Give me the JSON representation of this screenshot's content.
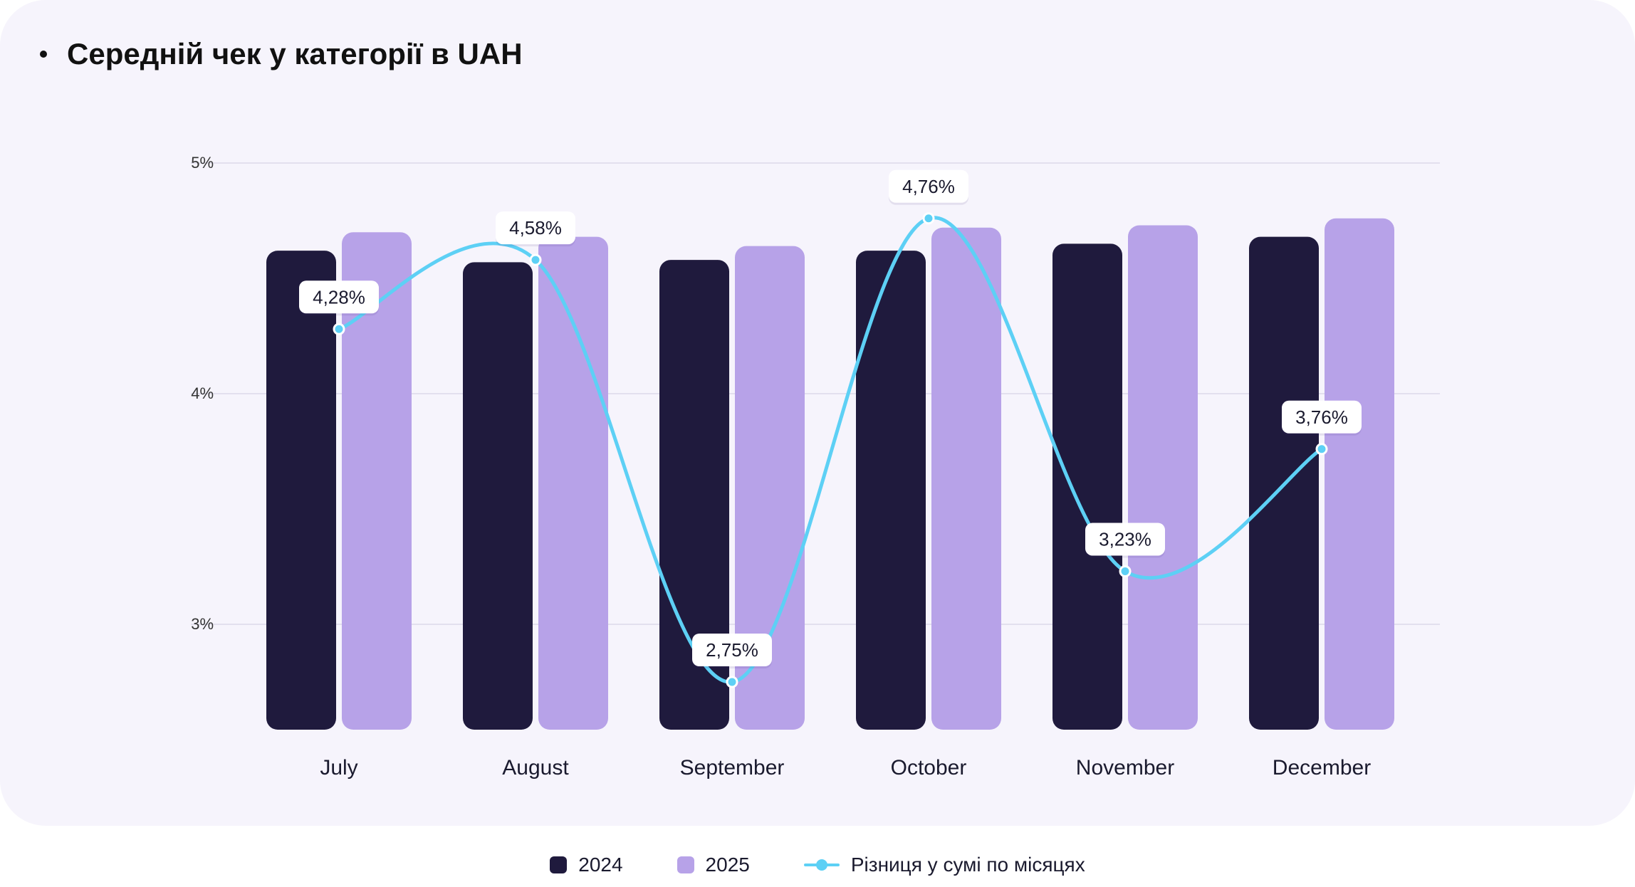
{
  "title": "Середній чек у категорії в UAH",
  "colors": {
    "series_2024": "#1f1a3d",
    "series_2025": "#b7a2e8",
    "line": "#5dd0f5",
    "grid": "#e3e0ee",
    "card_bg": "#f6f4fc"
  },
  "legend": {
    "item_2024": "2024",
    "item_2025": "2025",
    "item_line": "Різниця у сумі по місяцях"
  },
  "chart_data": {
    "type": "bar",
    "title": "Середній чек у категорії в UAH",
    "categories": [
      "July",
      "August",
      "September",
      "October",
      "November",
      "December"
    ],
    "series": [
      {
        "name": "2024",
        "type": "bar",
        "values": [
          4.62,
          4.57,
          4.58,
          4.62,
          4.65,
          4.68
        ]
      },
      {
        "name": "2025",
        "type": "bar",
        "values": [
          4.7,
          4.68,
          4.64,
          4.72,
          4.73,
          4.76
        ]
      },
      {
        "name": "Різниця у сумі по місяцях",
        "type": "line",
        "values": [
          4.28,
          4.58,
          2.75,
          4.76,
          3.23,
          3.76
        ],
        "labels": [
          "4,28%",
          "4,58%",
          "2,75%",
          "4,76%",
          "3,23%",
          "3,76%"
        ]
      }
    ],
    "y_ticks": [
      {
        "value": 5,
        "label": "5%"
      },
      {
        "value": 4,
        "label": "4%"
      },
      {
        "value": 3,
        "label": "3%"
      }
    ],
    "ylim": [
      2.5,
      5.2
    ],
    "grid": true,
    "legend_position": "bottom-center"
  }
}
